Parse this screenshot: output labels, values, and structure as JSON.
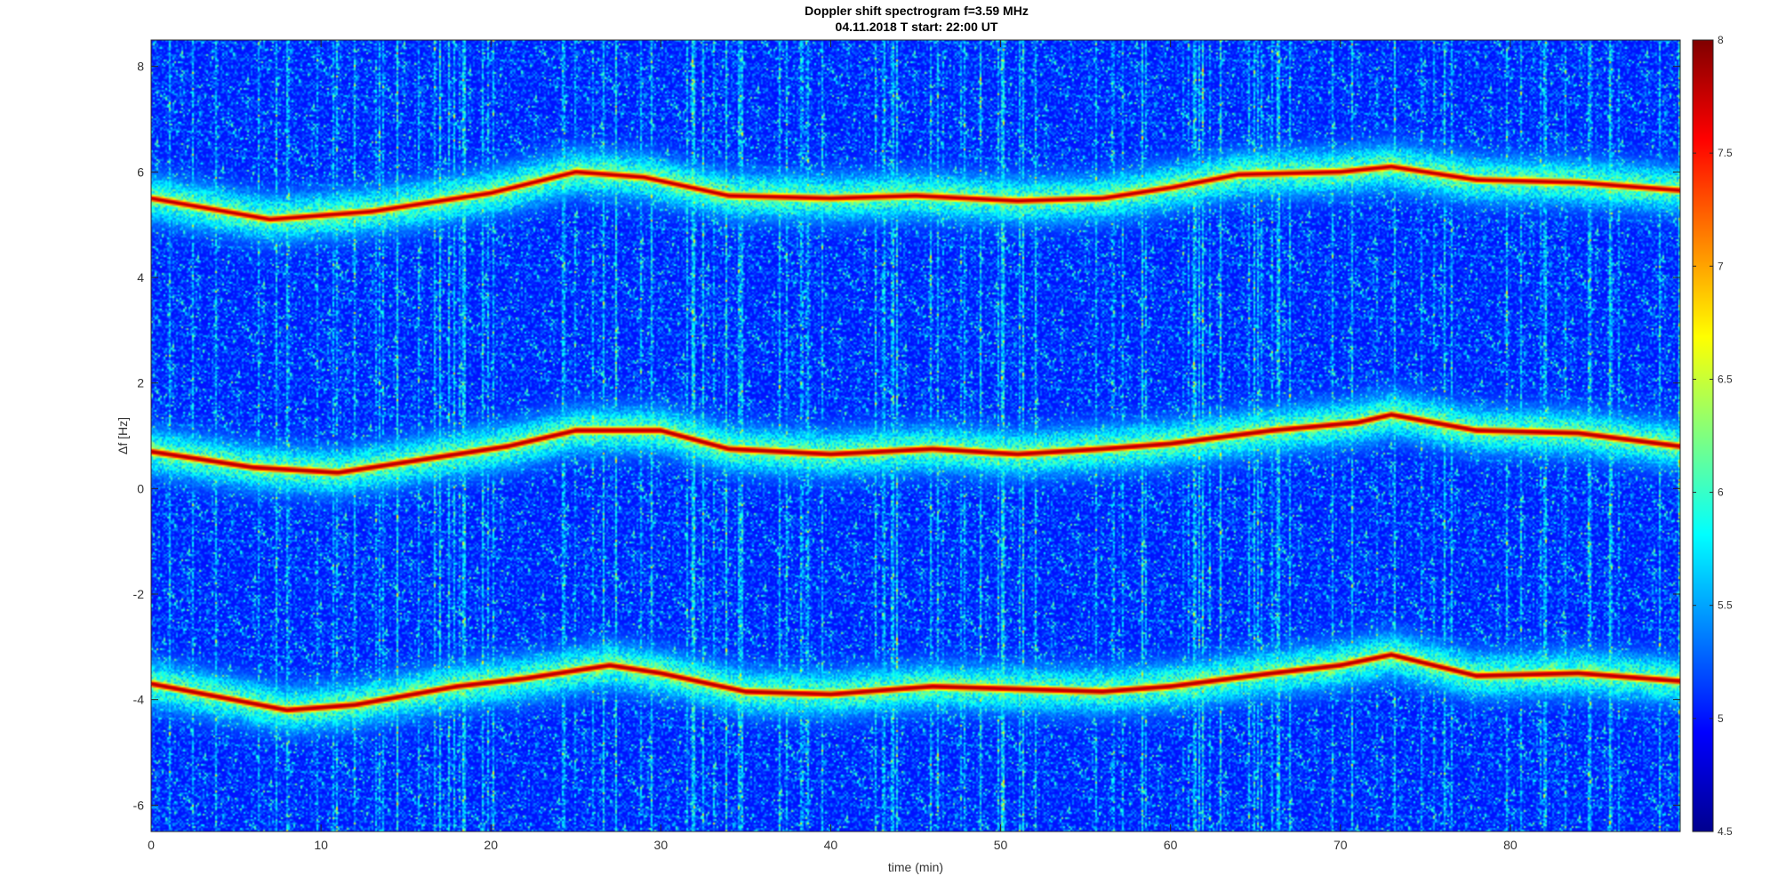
{
  "chart_data": {
    "type": "heatmap",
    "title": "Doppler shift spectrogram f=3.59 MHz",
    "subtitle": "04.11.2018   T start: 22:00 UT",
    "xlabel": "time (min)",
    "ylabel": "Δf [Hz]",
    "xlim": [
      0,
      90
    ],
    "ylim": [
      -6.5,
      8.5
    ],
    "x_ticks": [
      0,
      10,
      20,
      30,
      40,
      50,
      60,
      70,
      80
    ],
    "y_ticks": [
      -6,
      -4,
      -2,
      0,
      2,
      4,
      6,
      8
    ],
    "colormap": "jet",
    "clim": [
      4.5,
      8
    ],
    "colorbar_ticks": [
      4.5,
      5,
      5.5,
      6,
      6.5,
      7,
      7.5,
      8
    ],
    "grid": false,
    "background_level": 5.0,
    "traces": [
      {
        "name": "",
        "peak": 7.8,
        "points": [
          [
            0,
            5.5
          ],
          [
            7,
            5.1
          ],
          [
            13,
            5.25
          ],
          [
            20,
            5.6
          ],
          [
            25,
            6.0
          ],
          [
            29,
            5.9
          ],
          [
            34,
            5.55
          ],
          [
            40,
            5.5
          ],
          [
            45,
            5.55
          ],
          [
            51,
            5.45
          ],
          [
            56,
            5.5
          ],
          [
            60,
            5.7
          ],
          [
            64,
            5.95
          ],
          [
            70,
            6.0
          ],
          [
            73,
            6.1
          ],
          [
            78,
            5.85
          ],
          [
            84,
            5.8
          ],
          [
            90,
            5.65
          ]
        ]
      },
      {
        "name": "",
        "peak": 7.9,
        "points": [
          [
            0,
            0.7
          ],
          [
            6,
            0.4
          ],
          [
            11,
            0.3
          ],
          [
            16,
            0.55
          ],
          [
            21,
            0.8
          ],
          [
            25,
            1.1
          ],
          [
            30,
            1.1
          ],
          [
            34,
            0.75
          ],
          [
            40,
            0.65
          ],
          [
            46,
            0.75
          ],
          [
            51,
            0.65
          ],
          [
            56,
            0.75
          ],
          [
            60,
            0.85
          ],
          [
            66,
            1.1
          ],
          [
            71,
            1.25
          ],
          [
            73,
            1.4
          ],
          [
            78,
            1.1
          ],
          [
            84,
            1.05
          ],
          [
            90,
            0.8
          ]
        ]
      },
      {
        "name": "",
        "peak": 7.9,
        "points": [
          [
            0,
            -3.7
          ],
          [
            8,
            -4.2
          ],
          [
            12,
            -4.1
          ],
          [
            18,
            -3.75
          ],
          [
            22,
            -3.6
          ],
          [
            27,
            -3.35
          ],
          [
            30,
            -3.5
          ],
          [
            35,
            -3.85
          ],
          [
            40,
            -3.9
          ],
          [
            46,
            -3.75
          ],
          [
            51,
            -3.8
          ],
          [
            56,
            -3.85
          ],
          [
            60,
            -3.75
          ],
          [
            66,
            -3.5
          ],
          [
            70,
            -3.35
          ],
          [
            73,
            -3.15
          ],
          [
            78,
            -3.55
          ],
          [
            84,
            -3.5
          ],
          [
            90,
            -3.65
          ]
        ]
      }
    ]
  }
}
